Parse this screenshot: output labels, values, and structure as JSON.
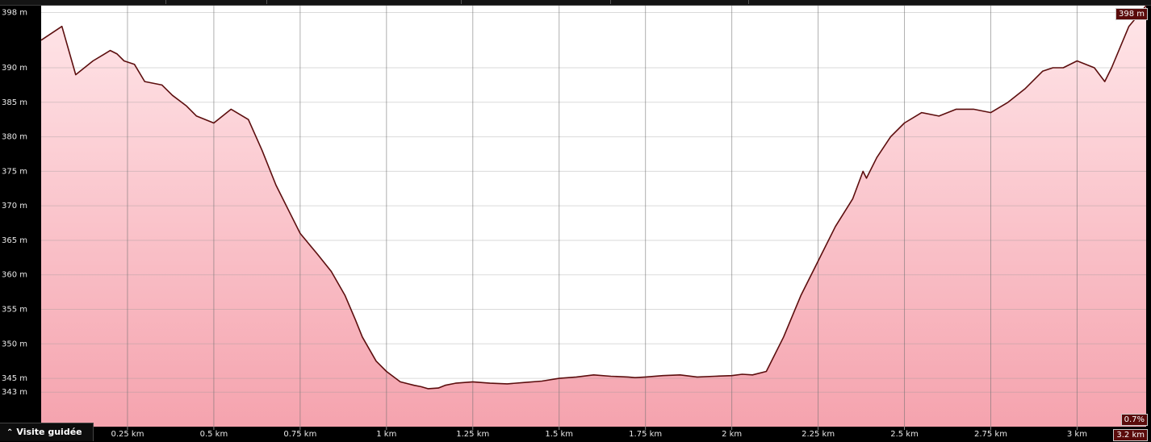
{
  "badges": {
    "max_elev": "398 m",
    "grade": "0.7%",
    "total_dist": "3.2 km"
  },
  "guide_button": {
    "label": "Visite guidée",
    "icon": "double-chevron-up-icon"
  },
  "colors": {
    "line": "#5c0e0e",
    "fill_top": "#ffe6e9",
    "fill_bottom": "#f5a3ae",
    "badge": "#5a0b0b"
  },
  "chart_data": {
    "type": "area",
    "xlabel": "",
    "ylabel": "",
    "xlim": [
      0,
      3.2
    ],
    "ylim": [
      338,
      399
    ],
    "grid": true,
    "y_ticks": [
      {
        "v": 398,
        "label": "398 m"
      },
      {
        "v": 390,
        "label": "390 m"
      },
      {
        "v": 385,
        "label": "385 m"
      },
      {
        "v": 380,
        "label": "380 m"
      },
      {
        "v": 375,
        "label": "375 m"
      },
      {
        "v": 370,
        "label": "370 m"
      },
      {
        "v": 365,
        "label": "365 m"
      },
      {
        "v": 360,
        "label": "360 m"
      },
      {
        "v": 355,
        "label": "355 m"
      },
      {
        "v": 350,
        "label": "350 m"
      },
      {
        "v": 345,
        "label": "345 m"
      },
      {
        "v": 343,
        "label": "343 m"
      }
    ],
    "x_ticks": [
      {
        "v": 0.25,
        "label": "0.25 km"
      },
      {
        "v": 0.5,
        "label": "0.5 km"
      },
      {
        "v": 0.75,
        "label": "0.75 km"
      },
      {
        "v": 1.0,
        "label": "1 km"
      },
      {
        "v": 1.25,
        "label": "1.25 km"
      },
      {
        "v": 1.5,
        "label": "1.5 km"
      },
      {
        "v": 1.75,
        "label": "1.75 km"
      },
      {
        "v": 2.0,
        "label": "2 km"
      },
      {
        "v": 2.25,
        "label": "2.25 km"
      },
      {
        "v": 2.5,
        "label": "2.5 km"
      },
      {
        "v": 2.75,
        "label": "2.75 km"
      },
      {
        "v": 3.0,
        "label": "3 km"
      }
    ],
    "series": [
      {
        "x": [
          0,
          0.06,
          0.1,
          0.15,
          0.2,
          0.22,
          0.24,
          0.27,
          0.3,
          0.35,
          0.38,
          0.42,
          0.45,
          0.5,
          0.55,
          0.6,
          0.64,
          0.68,
          0.72,
          0.75,
          0.8,
          0.84,
          0.88,
          0.91,
          0.93,
          0.97,
          1.0,
          1.04,
          1.08,
          1.1,
          1.12,
          1.15,
          1.17,
          1.2,
          1.25,
          1.3,
          1.35,
          1.4,
          1.45,
          1.5,
          1.55,
          1.6,
          1.65,
          1.7,
          1.72,
          1.75,
          1.8,
          1.85,
          1.9,
          1.95,
          2.0,
          2.03,
          2.06,
          2.1,
          2.15,
          2.2,
          2.25,
          2.3,
          2.35,
          2.38,
          2.39,
          2.42,
          2.46,
          2.5,
          2.55,
          2.6,
          2.65,
          2.7,
          2.75,
          2.8,
          2.85,
          2.9,
          2.93,
          2.96,
          3.0,
          3.05,
          3.08,
          3.1,
          3.15,
          3.2
        ],
        "y": [
          394,
          396,
          389,
          391,
          392.5,
          392,
          391,
          390.5,
          388,
          387.5,
          386,
          384.5,
          383,
          382,
          384,
          382.5,
          378,
          373,
          369,
          366,
          363,
          360.5,
          357,
          353.5,
          351,
          347.5,
          346,
          344.5,
          344,
          343.8,
          343.5,
          343.6,
          344,
          344.3,
          344.5,
          344.3,
          344.2,
          344.4,
          344.6,
          345,
          345.2,
          345.5,
          345.3,
          345.2,
          345.1,
          345.2,
          345.4,
          345.5,
          345.2,
          345.3,
          345.4,
          345.6,
          345.5,
          346,
          351,
          357,
          362,
          367,
          371,
          375,
          374,
          377,
          380,
          382,
          383.5,
          383,
          384,
          384,
          383.5,
          385,
          387,
          389.5,
          390,
          390,
          391,
          390,
          388,
          390,
          396,
          399
        ]
      }
    ]
  }
}
